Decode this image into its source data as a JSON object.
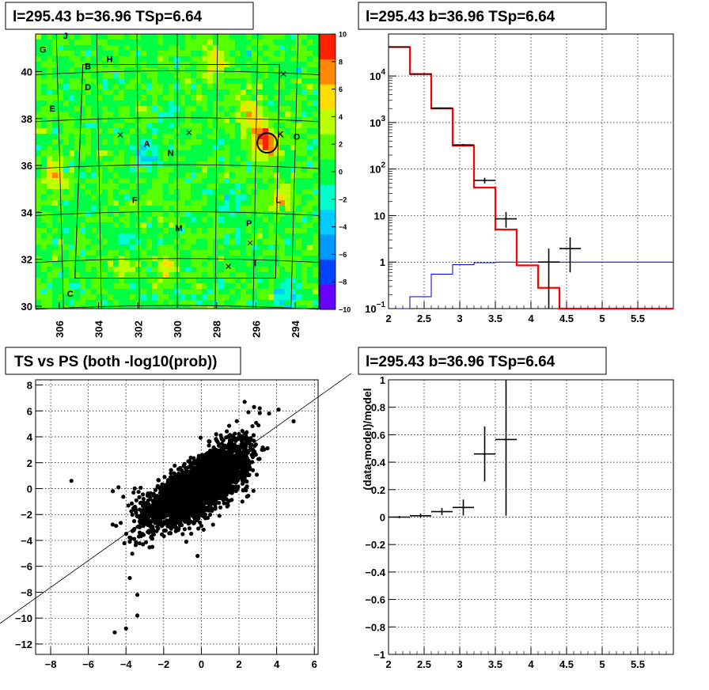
{
  "panels": {
    "skymap": {
      "title": "l=295.43 b=36.96 TSp=6.64",
      "x_ticks": [
        "306",
        "304",
        "302",
        "300",
        "298",
        "296",
        "294"
      ],
      "y_ticks": [
        "30",
        "32",
        "34",
        "36",
        "38",
        "40"
      ],
      "colorbar_ticks": [
        "10",
        "8",
        "6",
        "4",
        "2",
        "0",
        "−2",
        "−4",
        "−6",
        "−8",
        "−10"
      ],
      "source_labels": [
        "J",
        "G",
        "B",
        "H",
        "D",
        "E",
        "A",
        "N",
        "K",
        "O",
        "F",
        "L",
        "P",
        "M",
        "I",
        "C"
      ]
    },
    "spectrum": {
      "title": "l=295.43 b=36.96 TSp=6.64",
      "x_ticks": [
        "2",
        "2.5",
        "3",
        "3.5",
        "4",
        "4.5",
        "5",
        "5.5"
      ],
      "y_tick_labels": [
        "10^-1",
        "1",
        "10",
        "10^2",
        "10^3",
        "10^4"
      ]
    },
    "scatter": {
      "title": "TS vs PS (both -log10(prob))",
      "x_ticks": [
        "−8",
        "−6",
        "−4",
        "−2",
        "0",
        "2",
        "4",
        "6"
      ],
      "y_ticks": [
        "8",
        "6",
        "4",
        "2",
        "0",
        "−2",
        "−4",
        "−6",
        "−8",
        "−10",
        "−12"
      ]
    },
    "residual": {
      "title": "l=295.43 b=36.96 TSp=6.64",
      "ylabel": "(data-model)/model",
      "x_ticks": [
        "2",
        "2.5",
        "3",
        "3.5",
        "4",
        "4.5",
        "5",
        "5.5"
      ],
      "y_ticks": [
        "1",
        "0.8",
        "0.6",
        "0.4",
        "0.2",
        "0",
        "−0.2",
        "−0.4",
        "−0.6",
        "−0.8",
        "−1"
      ]
    }
  },
  "chart_data": [
    {
      "type": "heatmap",
      "title": "l=295.43 b=36.96 TSp=6.64",
      "xlim": [
        307.2,
        292.8
      ],
      "ylim": [
        29.9,
        41.6
      ],
      "zlim": [
        -10,
        10
      ],
      "colormap": [
        "#6600ff",
        "#0044ff",
        "#0099ff",
        "#00ccff",
        "#00ffcc",
        "#00ff44",
        "#55ff00",
        "#bbff00",
        "#ffdd00",
        "#ff8800",
        "#ff2200"
      ],
      "source_labels": [
        {
          "name": "J",
          "l": 305.8,
          "b": 41.4
        },
        {
          "name": "G",
          "l": 307.0,
          "b": 40.8
        },
        {
          "name": "B",
          "l": 304.7,
          "b": 40.1
        },
        {
          "name": "H",
          "l": 303.6,
          "b": 40.4
        },
        {
          "name": "D",
          "l": 304.7,
          "b": 39.2
        },
        {
          "name": "E",
          "l": 306.5,
          "b": 38.3
        },
        {
          "name": "A",
          "l": 301.7,
          "b": 36.8
        },
        {
          "name": "N",
          "l": 300.5,
          "b": 36.4
        },
        {
          "name": "K",
          "l": 294.9,
          "b": 37.2
        },
        {
          "name": "O",
          "l": 294.1,
          "b": 37.1
        },
        {
          "name": "F",
          "l": 302.3,
          "b": 34.4
        },
        {
          "name": "L",
          "l": 295.0,
          "b": 34.4
        },
        {
          "name": "P",
          "l": 296.5,
          "b": 33.4
        },
        {
          "name": "M",
          "l": 300.1,
          "b": 33.2
        },
        {
          "name": "I",
          "l": 296.1,
          "b": 31.7
        },
        {
          "name": "C",
          "l": 305.6,
          "b": 30.4
        }
      ],
      "markers": [
        {
          "l": 294.6,
          "b": 39.9
        },
        {
          "l": 302.9,
          "b": 37.3
        },
        {
          "l": 299.4,
          "b": 37.4
        },
        {
          "l": 296.3,
          "b": 32.7
        },
        {
          "l": 297.4,
          "b": 31.7
        }
      ],
      "circle": {
        "l": 295.43,
        "b": 36.96,
        "radius": 0.5
      },
      "hotspots": [
        {
          "l": 295.5,
          "b": 36.9,
          "v": 8
        },
        {
          "l": 295.9,
          "b": 37.7,
          "v": 5
        },
        {
          "l": 296.4,
          "b": 38.5,
          "v": 4
        },
        {
          "l": 306.2,
          "b": 35.6,
          "v": 5
        },
        {
          "l": 298.1,
          "b": 40.4,
          "v": 5
        },
        {
          "l": 300.6,
          "b": 31.6,
          "v": 4
        },
        {
          "l": 294.8,
          "b": 34.6,
          "v": 4
        },
        {
          "l": 302.8,
          "b": 31.8,
          "v": 3
        },
        {
          "l": 301.6,
          "b": 36.5,
          "v": -4
        },
        {
          "l": 297.3,
          "b": 34.6,
          "v": -3
        },
        {
          "l": 302.6,
          "b": 32.7,
          "v": -3
        },
        {
          "l": 294.6,
          "b": 30.4,
          "v": -4
        },
        {
          "l": 300.4,
          "b": 38.2,
          "v": -2
        }
      ]
    },
    {
      "type": "line",
      "title": "l=295.43 b=36.96 TSp=6.64",
      "xlim": [
        2.0,
        6.0
      ],
      "ylim": [
        0.1,
        80000
      ],
      "yscale": "log",
      "grid": true,
      "bin_edges": [
        2.0,
        2.3,
        2.6,
        2.9,
        3.2,
        3.5,
        3.8,
        4.1,
        4.4,
        4.7,
        5.0,
        5.3,
        5.6,
        6.0
      ],
      "series": [
        {
          "kind": "model",
          "color": "#ff0000",
          "values": [
            42000,
            11000,
            2000,
            320,
            40,
            5,
            0.85,
            0.28,
            0.1,
            0.1,
            0.1,
            0.1,
            0.1
          ]
        },
        {
          "kind": "background",
          "color": "#0000cc",
          "values": [
            0.1,
            0.18,
            0.55,
            0.88,
            0.97,
            1.0,
            1.0,
            1.0,
            1.0,
            1.0,
            1.0,
            1.0,
            1.0
          ]
        },
        {
          "kind": "data",
          "color": "#000000",
          "points": [
            {
              "x": 2.15,
              "y": 42000,
              "ylo": 41800,
              "yhi": 42200
            },
            {
              "x": 2.45,
              "y": 11000,
              "ylo": 10900,
              "yhi": 11100
            },
            {
              "x": 2.75,
              "y": 2050,
              "ylo": 2000,
              "yhi": 2100
            },
            {
              "x": 3.05,
              "y": 330,
              "ylo": 312,
              "yhi": 348
            },
            {
              "x": 3.35,
              "y": 57,
              "ylo": 49,
              "yhi": 65
            },
            {
              "x": 3.65,
              "y": 8.5,
              "ylo": 5.5,
              "yhi": 12
            },
            {
              "x": 4.25,
              "y": 1.0,
              "ylo": 0.1,
              "yhi": 1.95
            },
            {
              "x": 4.55,
              "y": 1.95,
              "ylo": 0.6,
              "yhi": 3.4
            }
          ]
        }
      ]
    },
    {
      "type": "scatter",
      "title": "TS vs PS (both -log10(prob))",
      "xlim": [
        -8.8,
        6.2
      ],
      "ylim": [
        -12.8,
        8.4
      ],
      "grid": true,
      "reference_line": {
        "x": [
          -8.8,
          6.2
        ],
        "y": [
          -9.8,
          7.8
        ]
      },
      "clusters": [
        {
          "cx": -0.7,
          "cy": -0.5,
          "sx": 0.8,
          "sy": 0.9,
          "n": 2200
        },
        {
          "cx": 0.9,
          "cy": 1.2,
          "sx": 0.8,
          "sy": 1.0,
          "n": 1100
        },
        {
          "cx": -1.9,
          "cy": -1.1,
          "sx": 0.9,
          "sy": 0.9,
          "n": 260
        },
        {
          "cx": 1.9,
          "cy": 2.5,
          "sx": 0.6,
          "sy": 1.2,
          "n": 170
        },
        {
          "cx": -2.8,
          "cy": -2.6,
          "sx": 0.6,
          "sy": 1.0,
          "n": 60
        }
      ],
      "outliers": [
        {
          "x": -6.9,
          "y": 0.6
        },
        {
          "x": -4.6,
          "y": -11.1
        },
        {
          "x": -4.0,
          "y": -10.8
        },
        {
          "x": -3.8,
          "y": -6.9
        },
        {
          "x": -3.4,
          "y": -8.2
        },
        {
          "x": -3.4,
          "y": -9.8
        },
        {
          "x": -0.2,
          "y": -5.2
        },
        {
          "x": -4.7,
          "y": -0.2
        },
        {
          "x": 4.9,
          "y": 5.2
        },
        {
          "x": 4.1,
          "y": 6.1
        },
        {
          "x": 3.1,
          "y": 6.2
        },
        {
          "x": 2.3,
          "y": 6.7
        },
        {
          "x": 2.8,
          "y": 6.3
        },
        {
          "x": 3.6,
          "y": 5.8
        },
        {
          "x": 2.5,
          "y": 5.9
        },
        {
          "x": -3.8,
          "y": -4.1
        },
        {
          "x": -3.1,
          "y": -4.3
        },
        {
          "x": -2.6,
          "y": -4.5
        },
        {
          "x": -0.8,
          "y": -4.1
        },
        {
          "x": -4.4,
          "y": 0.1
        },
        {
          "x": -3.6,
          "y": -0.3
        }
      ]
    },
    {
      "type": "scatter",
      "title": "l=295.43 b=36.96 TSp=6.64",
      "ylabel": "(data-model)/model",
      "xlim": [
        2.0,
        6.0
      ],
      "ylim": [
        -1.0,
        1.0
      ],
      "grid": true,
      "points": [
        {
          "x": 2.15,
          "y": 0.0,
          "xerr": 0.15,
          "ylo": -0.008,
          "yhi": 0.008
        },
        {
          "x": 2.45,
          "y": 0.01,
          "xerr": 0.15,
          "ylo": -0.006,
          "yhi": 0.026
        },
        {
          "x": 2.75,
          "y": 0.04,
          "xerr": 0.15,
          "ylo": 0.014,
          "yhi": 0.066
        },
        {
          "x": 3.05,
          "y": 0.07,
          "xerr": 0.15,
          "ylo": 0.012,
          "yhi": 0.128
        },
        {
          "x": 3.35,
          "y": 0.46,
          "xerr": 0.15,
          "ylo": 0.26,
          "yhi": 0.66
        },
        {
          "x": 3.65,
          "y": 0.565,
          "xerr": 0.15,
          "ylo": 0.01,
          "yhi": 1.0
        }
      ]
    }
  ]
}
